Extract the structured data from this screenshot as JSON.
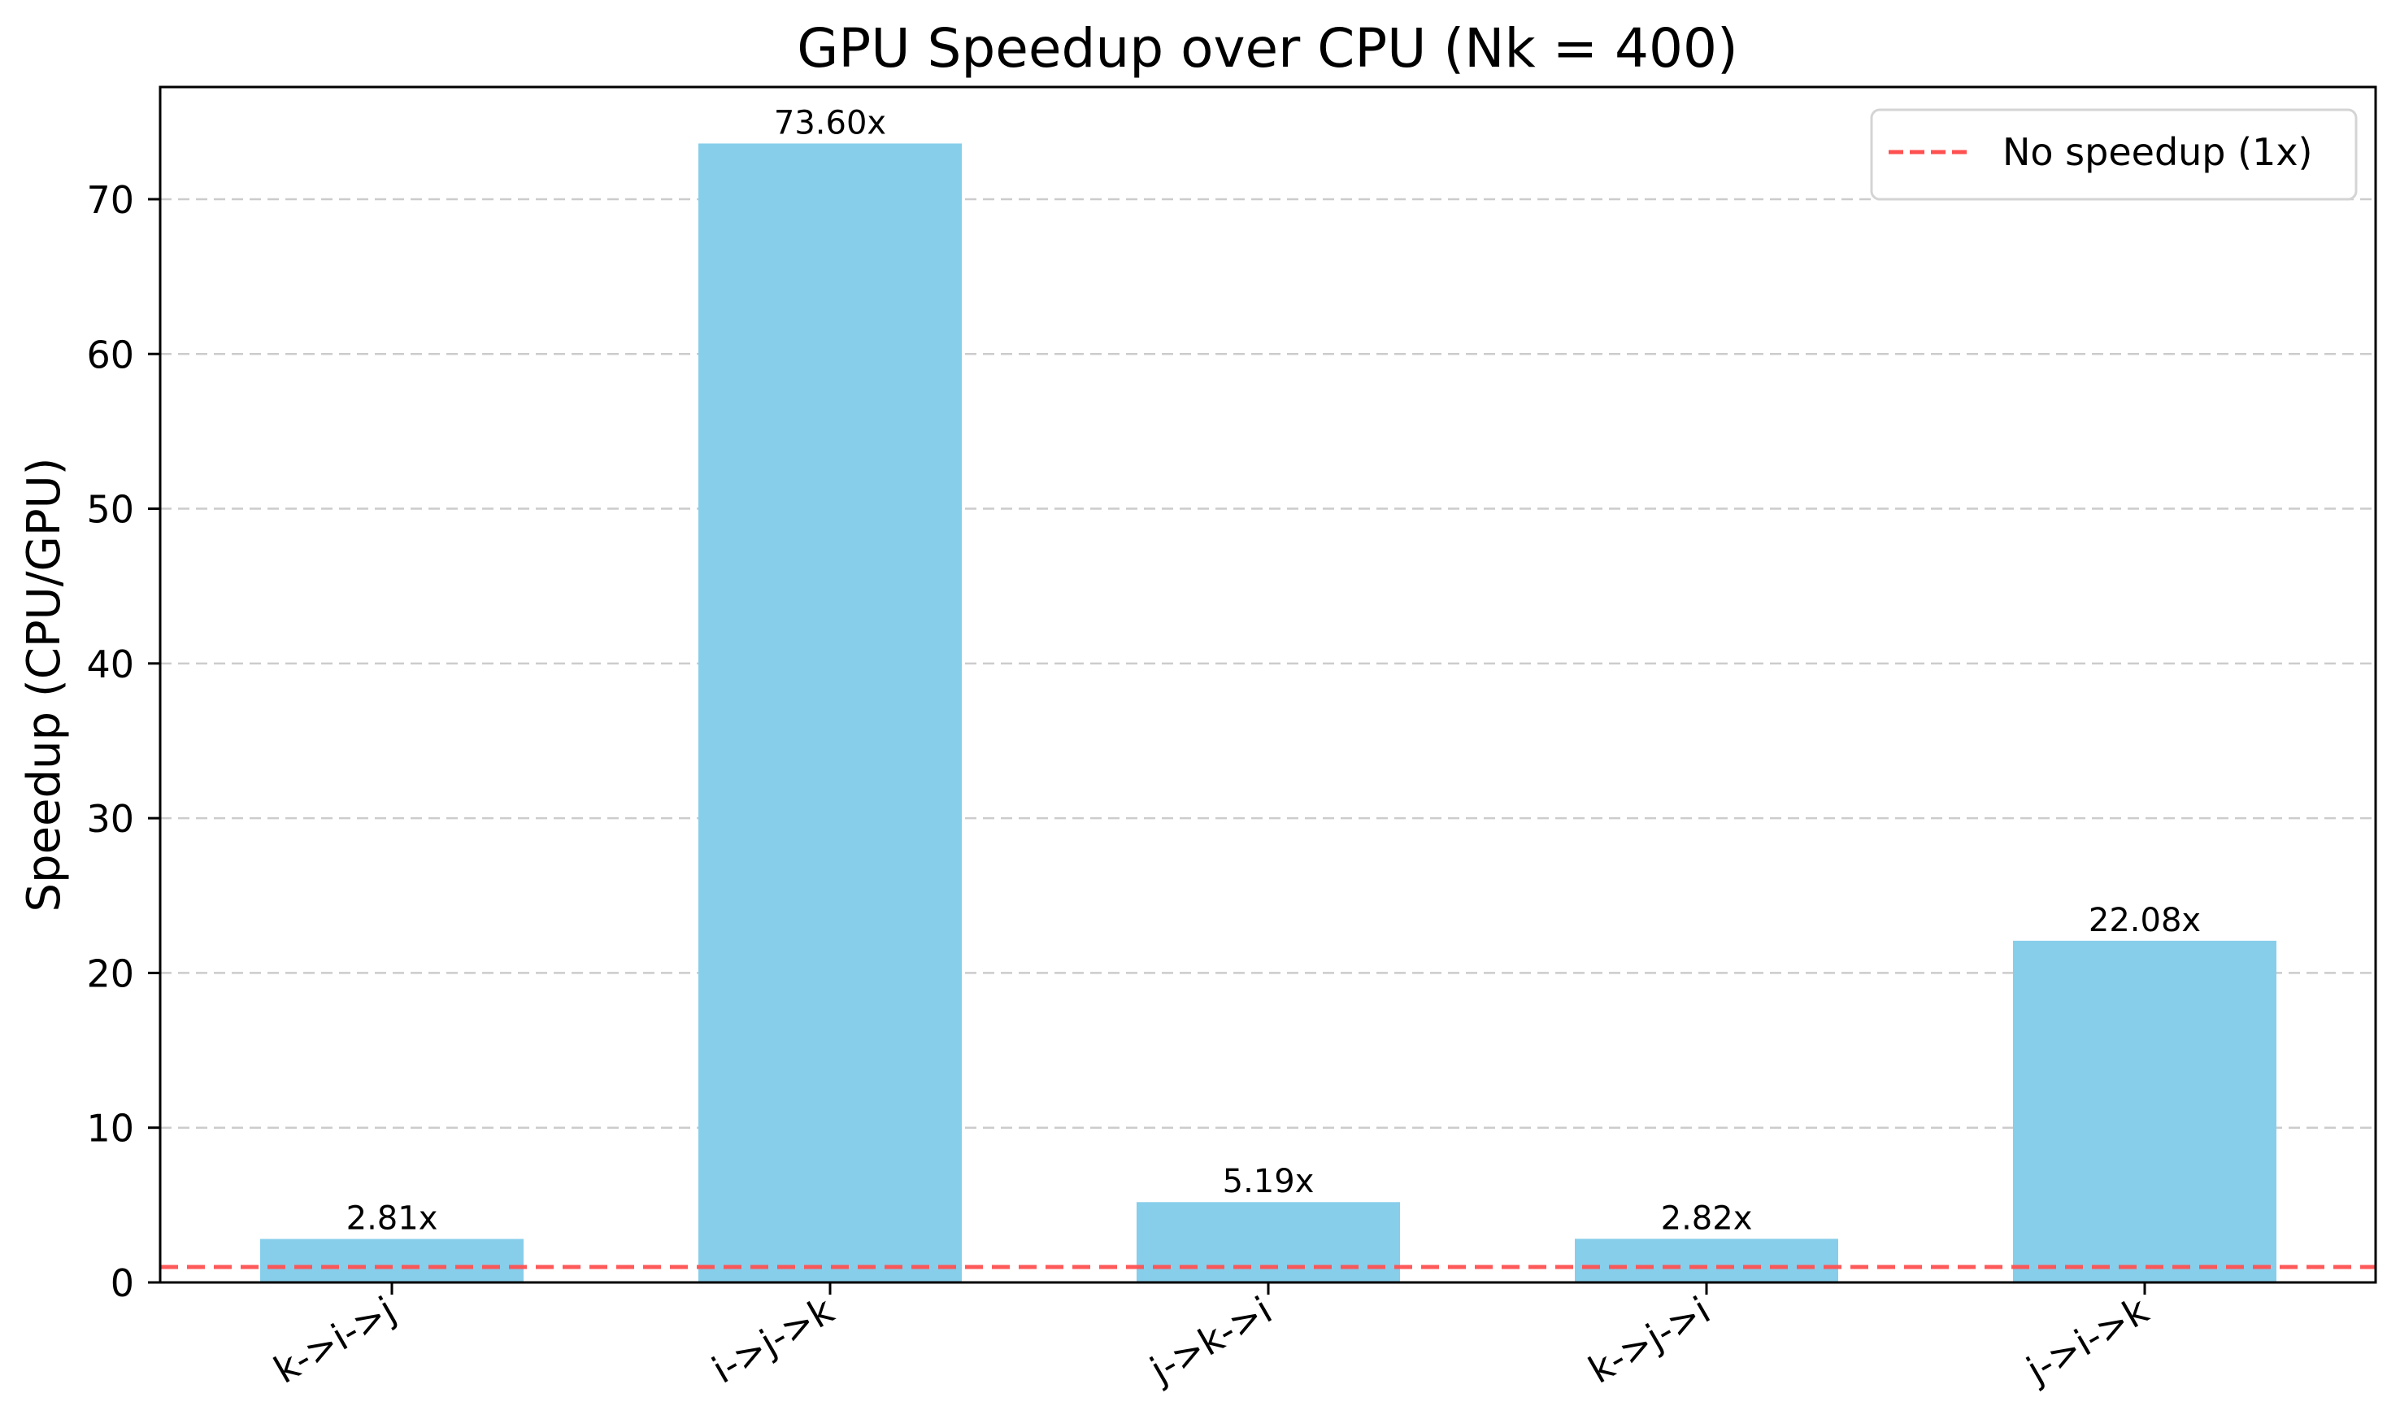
{
  "chart_data": {
    "type": "bar",
    "title": "GPU Speedup over CPU (Nk = 400)",
    "xlabel": "",
    "ylabel": "Speedup (CPU/GPU)",
    "categories": [
      "k->i->j",
      "i->j->k",
      "j->k->i",
      "k->j->i",
      "j->i->k"
    ],
    "values": [
      2.81,
      73.6,
      5.19,
      2.82,
      22.08
    ],
    "value_labels": [
      "2.81x",
      "73.60x",
      "5.19x",
      "2.82x",
      "22.08x"
    ],
    "ylim": [
      0,
      77.25
    ],
    "yticks": [
      0,
      10,
      20,
      30,
      40,
      50,
      60,
      70
    ],
    "grid": {
      "axis": "y",
      "style": "dashed",
      "color": "#cccccc"
    },
    "bar_color": "#87ceeb",
    "xtick_rotation": -30,
    "reference_line": {
      "y": 1,
      "label": "No speedup (1x)",
      "color": "#ff5050",
      "style": "dashed"
    },
    "legend": {
      "position": "upper right",
      "entries": [
        "No speedup (1x)"
      ]
    }
  },
  "legend": {
    "label": "No speedup (1x)"
  }
}
